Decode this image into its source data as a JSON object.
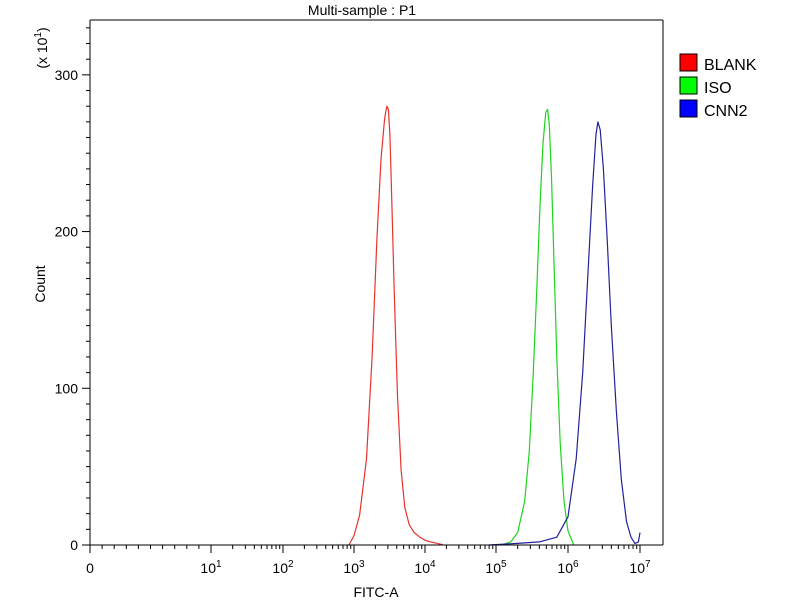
{
  "chart_data": {
    "type": "line",
    "title": "Multi-sample : P1",
    "xlabel": "FITC-A",
    "ylabel": "Count",
    "y_multiplier": "(x 10",
    "y_multiplier_exp": "1",
    "y_multiplier_close": ")",
    "x_scale": "log",
    "xlim": [
      0,
      10000000
    ],
    "ylim": [
      0,
      335
    ],
    "x_ticks": [
      {
        "label": "0",
        "exp": ""
      },
      {
        "label": "10",
        "exp": "1"
      },
      {
        "label": "10",
        "exp": "2"
      },
      {
        "label": "10",
        "exp": "3"
      },
      {
        "label": "10",
        "exp": "4"
      },
      {
        "label": "10",
        "exp": "5"
      },
      {
        "label": "10",
        "exp": "6"
      },
      {
        "label": "10",
        "exp": "7"
      }
    ],
    "y_ticks": [
      {
        "label": "0",
        "value": 0
      },
      {
        "label": "100",
        "value": 100
      },
      {
        "label": "200",
        "value": 200
      },
      {
        "label": "300",
        "value": 300
      }
    ],
    "grid": false,
    "legend_position": "right-top",
    "series": [
      {
        "name": "BLANK",
        "color": "#e8322c",
        "legend_color": "#ff0000",
        "x": [
          850,
          1000,
          1200,
          1500,
          1800,
          2100,
          2400,
          2700,
          2900,
          3050,
          3200,
          3400,
          3700,
          4100,
          4600,
          5200,
          6000,
          7000,
          8500,
          10000,
          12000,
          15000,
          18000
        ],
        "y": [
          0,
          6,
          19,
          55,
          120,
          195,
          246,
          272,
          280,
          278,
          262,
          222,
          160,
          95,
          48,
          24,
          13,
          8,
          5,
          3,
          2,
          1,
          0
        ]
      },
      {
        "name": "ISO",
        "color": "#1fd41f",
        "legend_color": "#00ff00",
        "x": [
          120000,
          160000,
          200000,
          250000,
          290000,
          330000,
          370000,
          410000,
          450000,
          490000,
          520000,
          550000,
          590000,
          640000,
          700000,
          780000,
          880000,
          1000000,
          1200000
        ],
        "y": [
          0,
          2,
          8,
          28,
          60,
          110,
          165,
          218,
          256,
          276,
          278,
          268,
          235,
          180,
          120,
          65,
          28,
          9,
          0
        ]
      },
      {
        "name": "CNN2",
        "color": "#222299",
        "legend_color": "#0000ff",
        "x": [
          80000,
          200000,
          400000,
          700000,
          1000000,
          1300000,
          1600000,
          1900000,
          2200000,
          2450000,
          2600000,
          2800000,
          3100000,
          3500000,
          4000000,
          4700000,
          5500000,
          6500000,
          7500000,
          8500000,
          9500000,
          10000000
        ],
        "y": [
          0,
          1,
          2,
          5,
          18,
          55,
          110,
          175,
          230,
          262,
          270,
          265,
          240,
          195,
          140,
          85,
          42,
          15,
          5,
          1,
          2,
          8
        ]
      }
    ]
  }
}
